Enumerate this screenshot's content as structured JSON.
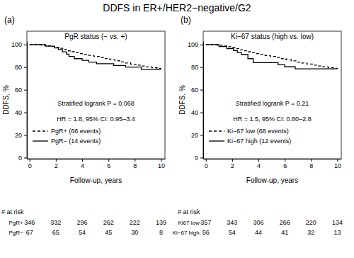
{
  "title": "DDFS in ER+/HER2−negative/G2",
  "chart_data": [
    {
      "type": "step",
      "panel_label": "(a)",
      "title": "PgR status (− vs. +)",
      "xlabel": "Follow-up, years",
      "ylabel": "DDFS, %",
      "xlim": [
        -0.2,
        10.3
      ],
      "ylim": [
        -1,
        103
      ],
      "xticks": [
        0,
        2,
        4,
        6,
        8,
        10
      ],
      "yticks": [
        0,
        20,
        40,
        60,
        80,
        100
      ],
      "grid": false,
      "legend": "lower left",
      "annotations": [
        "Stratified logrank P = 0.068",
        "HR = 1.8, 95% CI: 0.95–3.4"
      ],
      "series": [
        {
          "name": "PgR+ (66 events)",
          "color": "#000000",
          "line_style": "dashed",
          "x": [
            0,
            0.5,
            0.9,
            1.3,
            1.7,
            2.0,
            2.3,
            2.6,
            2.9,
            3.2,
            3.5,
            3.8,
            4.1,
            4.5,
            4.9,
            5.3,
            5.7,
            6.1,
            6.5,
            6.9,
            7.3,
            7.7,
            8.1,
            8.5,
            8.9,
            9.3,
            9.7,
            10.0
          ],
          "values": [
            100,
            99.7,
            99.4,
            98.8,
            98.2,
            97.5,
            96.6,
            95.5,
            94.4,
            93.6,
            92.8,
            92.0,
            91.2,
            90.4,
            89.5,
            88.6,
            87.6,
            86.6,
            85.6,
            84.6,
            83.6,
            82.6,
            81.8,
            81.0,
            80.2,
            79.5,
            78.8,
            78.5
          ]
        },
        {
          "name": "PgR− (14 events)",
          "color": "#000000",
          "line_style": "solid",
          "x": [
            0,
            1.2,
            1.9,
            2.2,
            2.5,
            2.8,
            3.0,
            3.4,
            4.0,
            4.5,
            5.1,
            6.4,
            7.3,
            8.5,
            10.0
          ],
          "values": [
            100,
            98.5,
            97,
            95.5,
            93.5,
            91.5,
            89.5,
            87.5,
            86,
            84.5,
            83,
            81.5,
            80,
            78,
            78
          ]
        }
      ],
      "risk_table": {
        "label": "# at risk",
        "rows": [
          {
            "name": "PgR+",
            "values": [
              346,
              332,
              296,
              262,
              222,
              139
            ]
          },
          {
            "name": "PgR−",
            "values": [
              67,
              65,
              54,
              45,
              30,
              8
            ]
          }
        ]
      }
    },
    {
      "type": "step",
      "panel_label": "(b)",
      "title": "Ki−67 status (high vs. low)",
      "xlabel": "Follow-up, years",
      "ylabel": "DDFS, %",
      "xlim": [
        -0.2,
        10.3
      ],
      "ylim": [
        -1,
        103
      ],
      "xticks": [
        0,
        2,
        4,
        6,
        8,
        10
      ],
      "yticks": [
        0,
        20,
        40,
        60,
        80,
        100
      ],
      "grid": false,
      "legend": "lower left",
      "annotations": [
        "Stratified logrank P = 0.21",
        "HR = 1.5, 95% CI: 0.80–2.8"
      ],
      "series": [
        {
          "name": "Ki−67 low (68 events)",
          "color": "#000000",
          "line_style": "dashed",
          "x": [
            0,
            0.5,
            0.9,
            1.3,
            1.7,
            2.0,
            2.3,
            2.6,
            2.9,
            3.2,
            3.5,
            3.8,
            4.1,
            4.5,
            4.9,
            5.3,
            5.7,
            6.1,
            6.5,
            6.9,
            7.3,
            7.7,
            8.1,
            8.5,
            8.9,
            9.3,
            9.7,
            10.0
          ],
          "values": [
            100,
            99.7,
            99.3,
            98.7,
            98.0,
            97.2,
            96.3,
            95.3,
            94.5,
            93.6,
            92.8,
            92.0,
            91.2,
            90.3,
            89.4,
            88.5,
            87.5,
            86.5,
            85.5,
            84.5,
            83.6,
            82.7,
            81.8,
            81.0,
            80.2,
            79.5,
            78.9,
            78.6
          ]
        },
        {
          "name": "Ki−67 high (12 events)",
          "color": "#000000",
          "line_style": "solid",
          "x": [
            0,
            1.0,
            1.6,
            2.1,
            2.4,
            2.7,
            3.2,
            3.6,
            5.5,
            6.0,
            6.8,
            10.0
          ],
          "values": [
            100,
            98.2,
            96.4,
            94.6,
            92.9,
            91.1,
            87.5,
            84.0,
            82.1,
            80.3,
            78.5,
            78.5
          ]
        }
      ],
      "risk_table": {
        "label": "# at risk",
        "rows": [
          {
            "name": "Ki67 low",
            "values": [
              357,
              343,
              306,
              266,
              220,
              134
            ]
          },
          {
            "name": "Ki−67 high",
            "values": [
              56,
              54,
              44,
              41,
              32,
              13
            ]
          }
        ]
      }
    }
  ]
}
